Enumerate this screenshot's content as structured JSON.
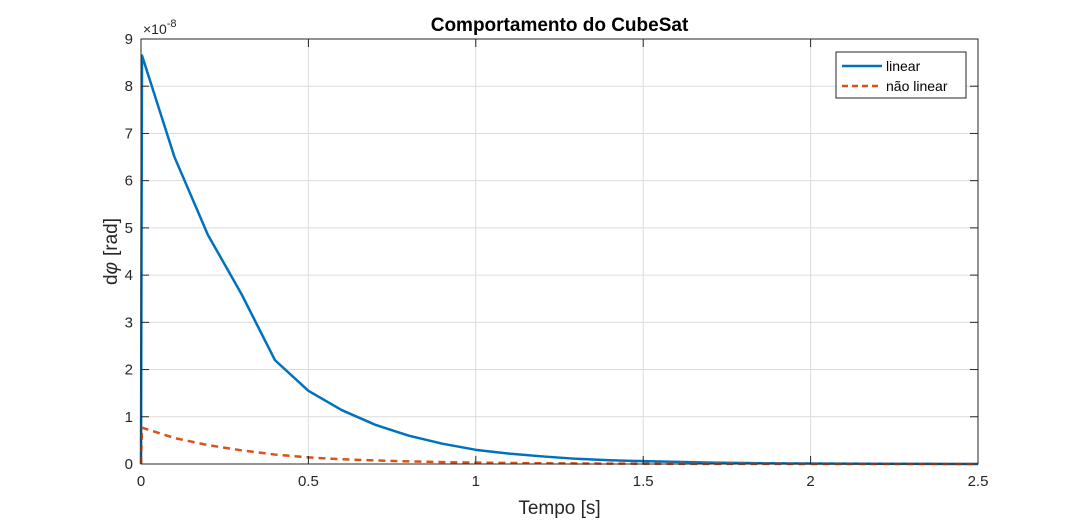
{
  "chart_data": {
    "type": "line",
    "title": "Comportamento do CubeSat",
    "xlabel": "Tempo [s]",
    "ylabel_prefix": "d",
    "ylabel_symbol": "φ",
    "ylabel_suffix": "[rad]",
    "y_multiplier_base": "×10",
    "y_multiplier_exp": "-8",
    "xlim": [
      0,
      2.5
    ],
    "ylim": [
      0,
      9
    ],
    "xticks": [
      0,
      0.5,
      1,
      1.5,
      2,
      2.5
    ],
    "xtick_labels": [
      "0",
      "0.5",
      "1",
      "1.5",
      "2",
      "2.5"
    ],
    "yticks": [
      0,
      1,
      2,
      3,
      4,
      5,
      6,
      7,
      8,
      9
    ],
    "ytick_labels": [
      "0",
      "1",
      "2",
      "3",
      "4",
      "5",
      "6",
      "7",
      "8",
      "9"
    ],
    "grid": true,
    "legend_position": "top-right",
    "series": [
      {
        "name": "linear",
        "color": "#0072BD",
        "style": "solid",
        "x": [
          0,
          0.003,
          0.1,
          0.2,
          0.3,
          0.4,
          0.5,
          0.6,
          0.7,
          0.8,
          0.9,
          1.0,
          1.1,
          1.2,
          1.3,
          1.4,
          1.5,
          1.6,
          1.7,
          1.8,
          2.0,
          2.2,
          2.5
        ],
        "values": [
          0,
          8.65,
          6.5,
          4.85,
          3.6,
          2.2,
          1.55,
          1.14,
          0.83,
          0.6,
          0.43,
          0.3,
          0.22,
          0.16,
          0.11,
          0.08,
          0.06,
          0.045,
          0.03,
          0.02,
          0.01,
          0.005,
          0
        ]
      },
      {
        "name": "não linear",
        "color": "#D95319",
        "style": "dashed",
        "x": [
          0,
          0.003,
          0.1,
          0.2,
          0.3,
          0.4,
          0.5,
          0.6,
          0.7,
          0.8,
          0.9,
          1.0,
          1.2,
          1.4,
          1.6,
          1.8,
          2.0,
          2.5
        ],
        "values": [
          0,
          0.77,
          0.55,
          0.4,
          0.29,
          0.2,
          0.14,
          0.1,
          0.075,
          0.055,
          0.04,
          0.03,
          0.015,
          0.008,
          0.004,
          0.002,
          0.001,
          0
        ]
      }
    ]
  }
}
